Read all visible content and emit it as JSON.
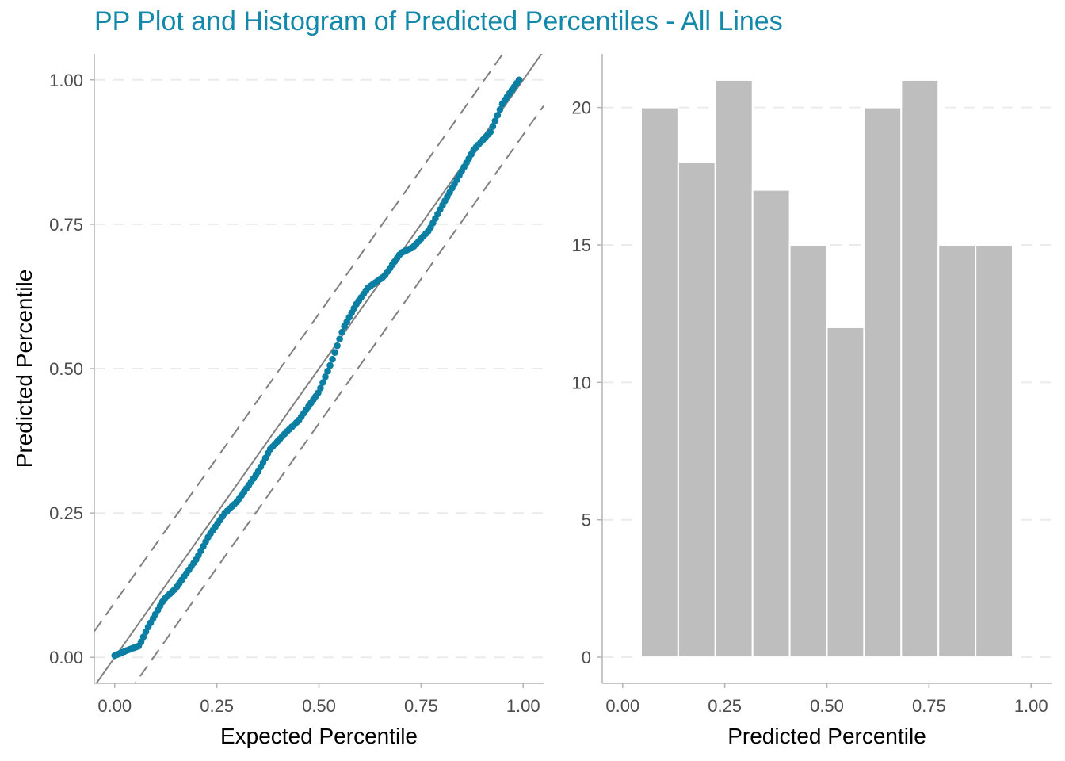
{
  "title": "PP Plot and Histogram of Predicted Percentiles - All Lines",
  "colors": {
    "title": "#1288aa",
    "points": "#0a7fa3",
    "reference_line": "#808080",
    "bars": "#bebebe",
    "grid": "#ebebeb"
  },
  "chart_data": [
    {
      "type": "scatter",
      "xlabel": "Expected Percentile",
      "ylabel": "Predicted Percentile",
      "xlim": [
        -0.05,
        1.05
      ],
      "ylim": [
        -0.045,
        1.045
      ],
      "x_ticks": [
        "0.00",
        "0.25",
        "0.50",
        "0.75",
        "1.00"
      ],
      "y_ticks": [
        "0.00",
        "0.25",
        "0.50",
        "0.75",
        "1.00"
      ],
      "x_tick_values": [
        0,
        0.25,
        0.5,
        0.75,
        1
      ],
      "y_tick_values": [
        0,
        0.25,
        0.5,
        0.75,
        1
      ],
      "grid": "horizontal dashed",
      "reference_lines": [
        {
          "style": "solid",
          "intercept": 0,
          "slope": 1
        },
        {
          "style": "dashed",
          "intercept": 0.095,
          "slope": 1
        },
        {
          "style": "dashed",
          "intercept": -0.095,
          "slope": 1
        }
      ],
      "curve_knots": [
        [
          0.0,
          0.003
        ],
        [
          0.03,
          0.012
        ],
        [
          0.06,
          0.02
        ],
        [
          0.08,
          0.05
        ],
        [
          0.12,
          0.1
        ],
        [
          0.15,
          0.12
        ],
        [
          0.2,
          0.17
        ],
        [
          0.23,
          0.21
        ],
        [
          0.27,
          0.25
        ],
        [
          0.3,
          0.27
        ],
        [
          0.35,
          0.32
        ],
        [
          0.38,
          0.36
        ],
        [
          0.42,
          0.39
        ],
        [
          0.45,
          0.41
        ],
        [
          0.48,
          0.44
        ],
        [
          0.5,
          0.46
        ],
        [
          0.53,
          0.51
        ],
        [
          0.56,
          0.57
        ],
        [
          0.59,
          0.61
        ],
        [
          0.62,
          0.64
        ],
        [
          0.66,
          0.66
        ],
        [
          0.7,
          0.7
        ],
        [
          0.73,
          0.71
        ],
        [
          0.77,
          0.74
        ],
        [
          0.8,
          0.78
        ],
        [
          0.84,
          0.83
        ],
        [
          0.88,
          0.88
        ],
        [
          0.92,
          0.91
        ],
        [
          0.95,
          0.96
        ],
        [
          0.99,
          1.0
        ]
      ],
      "n_points": 170
    },
    {
      "type": "bar",
      "xlabel": "Predicted Percentile",
      "xlim": [
        -0.05,
        1.05
      ],
      "ylim": [
        -0.95,
        21.95
      ],
      "x_ticks": [
        "0.00",
        "0.25",
        "0.50",
        "0.75",
        "1.00"
      ],
      "y_ticks": [
        "0",
        "5",
        "10",
        "15",
        "20"
      ],
      "x_tick_values": [
        0,
        0.25,
        0.5,
        0.75,
        1
      ],
      "y_tick_values": [
        0,
        5,
        10,
        15,
        20
      ],
      "grid": "horizontal dashed",
      "bin_edges": [
        0.045,
        0.136,
        0.227,
        0.318,
        0.409,
        0.5,
        0.591,
        0.682,
        0.773,
        0.864,
        0.955
      ],
      "values": [
        20,
        18,
        21,
        17,
        15,
        12,
        20,
        21,
        15,
        15
      ]
    }
  ]
}
